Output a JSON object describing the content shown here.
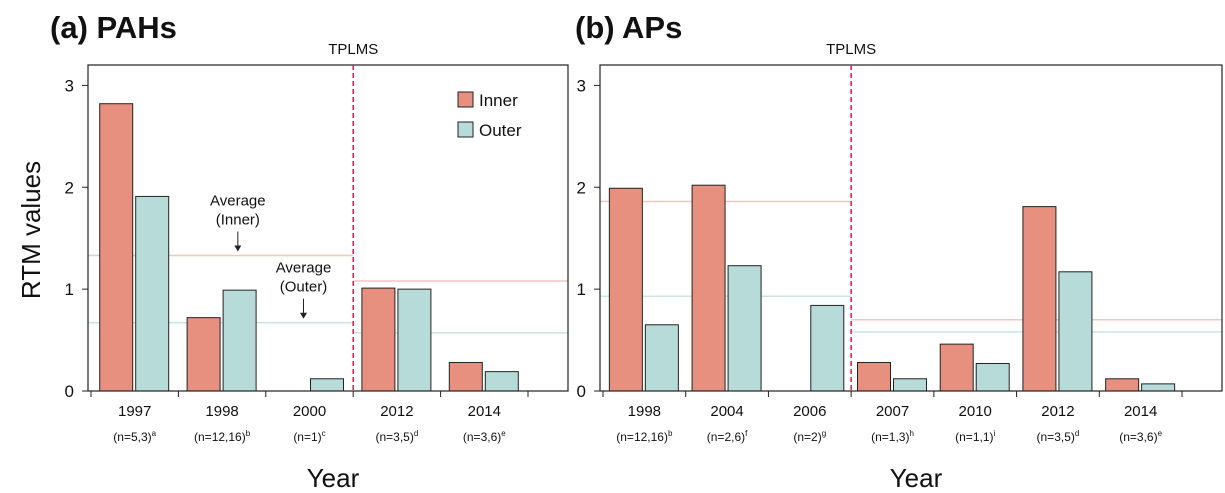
{
  "chart_data": [
    {
      "type": "bar",
      "title": "(a) PAHs",
      "categories": [
        "1997",
        "1998",
        "2000",
        "2012",
        "2014"
      ],
      "category_notes": [
        "(n=5,3)",
        "(n=12,16)",
        "(n=1)",
        "(n=3,5)",
        "(n=3,6)"
      ],
      "category_superscripts": [
        "a",
        "b",
        "c",
        "d",
        "e"
      ],
      "series": [
        {
          "name": "Inner",
          "color": "#e8907f",
          "average_color": "#f5c4bb",
          "values": [
            2.82,
            0.72,
            null,
            1.01,
            0.28
          ],
          "average_before": 1.33,
          "average_after": 1.08
        },
        {
          "name": "Outer",
          "color": "#b7dbd8",
          "average_color": "#c9e4e2",
          "values": [
            1.91,
            0.99,
            0.12,
            1.0,
            0.19
          ],
          "average_before": 0.67,
          "average_after": 0.57
        }
      ],
      "ylim": [
        0,
        3.2
      ],
      "yticks": [
        0,
        1,
        2,
        3
      ],
      "xlabel": "Year",
      "ylabel": "RTM values",
      "divider": {
        "label": "TPLMS",
        "index": 3,
        "color": "#d0204a"
      },
      "annotations": [
        {
          "lines": [
            "Average",
            "(Inner)"
          ],
          "series": 0
        },
        {
          "lines": [
            "Average",
            "(Outer)"
          ],
          "series": 1
        }
      ],
      "legend": "upper right"
    },
    {
      "type": "bar",
      "title": "(b) APs",
      "categories": [
        "1998",
        "2004",
        "2006",
        "2007",
        "2010",
        "2012",
        "2014"
      ],
      "category_notes": [
        "(n=12,16)",
        "(n=2,6)",
        "(n=2)",
        "(n=1,3)",
        "(n=1,1)",
        "(n=3,5)",
        "(n=3,6)"
      ],
      "category_superscripts": [
        "b",
        "f",
        "g",
        "h",
        "i",
        "d",
        "e"
      ],
      "series": [
        {
          "color": "#e8907f",
          "average_color": "#f5c4bb",
          "values": [
            1.99,
            2.02,
            null,
            0.28,
            0.46,
            1.81,
            0.12
          ],
          "average_before": 1.86,
          "average_after": 0.7
        },
        {
          "color": "#b7dbd8",
          "average_color": "#c9e4e2",
          "values": [
            0.65,
            1.23,
            0.84,
            0.12,
            0.27,
            1.17,
            0.07
          ],
          "average_before": 0.93,
          "average_after": 0.58
        }
      ],
      "ylim": [
        0,
        3.2
      ],
      "yticks": [
        0,
        1,
        2,
        3
      ],
      "xlabel": "Year",
      "divider": {
        "label": "TPLMS",
        "index": 3,
        "color": "#d0204a"
      }
    }
  ]
}
